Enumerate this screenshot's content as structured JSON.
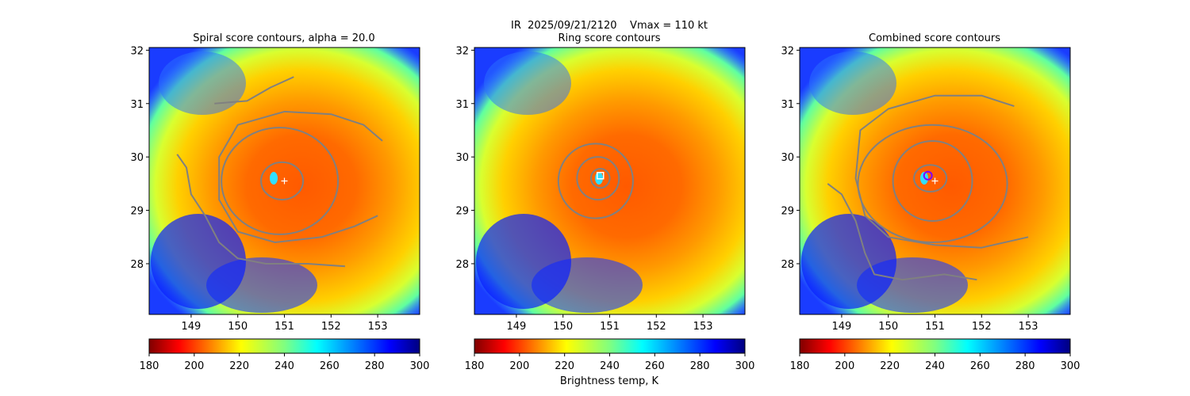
{
  "figure": {
    "suptitle": "IR  2025/09/21/2120    Vmax = 110 kt",
    "colorbar_label": "Brightness temp, K"
  },
  "chart_data": [
    {
      "type": "heatmap",
      "title": "Spiral score contours, alpha = 20.0",
      "xlim": [
        148.1,
        153.9
      ],
      "ylim": [
        27.05,
        32.05
      ],
      "x_ticks": [
        149,
        150,
        151,
        152,
        153
      ],
      "y_ticks": [
        28,
        29,
        30,
        31,
        32
      ],
      "colorbar": {
        "range": [
          180,
          300
        ],
        "ticks": [
          180,
          200,
          220,
          240,
          260,
          280,
          300
        ],
        "cmap": "jet_r"
      },
      "storm_center": {
        "lon": 151.0,
        "lat": 29.55,
        "marker": "+"
      },
      "contours": [
        {
          "kind": "ellipse",
          "lon": 150.95,
          "lat": 29.55,
          "rx": 0.45,
          "ry": 0.35
        },
        {
          "kind": "ellipse",
          "lon": 150.9,
          "lat": 29.55,
          "rx": 1.25,
          "ry": 1.0
        },
        {
          "kind": "path",
          "points": [
            [
              149.5,
              31.0
            ],
            [
              150.2,
              31.05
            ],
            [
              150.7,
              31.3
            ],
            [
              151.2,
              31.5
            ]
          ]
        },
        {
          "kind": "path",
          "points": [
            [
              153.1,
              30.3
            ],
            [
              152.7,
              30.6
            ],
            [
              152.0,
              30.8
            ],
            [
              151.0,
              30.85
            ],
            [
              150.0,
              30.6
            ],
            [
              149.6,
              30.0
            ],
            [
              149.6,
              29.2
            ],
            [
              150.0,
              28.6
            ],
            [
              150.8,
              28.4
            ],
            [
              151.8,
              28.5
            ],
            [
              152.5,
              28.7
            ],
            [
              153.0,
              28.9
            ]
          ]
        },
        {
          "kind": "path",
          "points": [
            [
              148.7,
              30.05
            ],
            [
              148.9,
              29.8
            ],
            [
              149.0,
              29.3
            ],
            [
              149.3,
              28.9
            ],
            [
              149.6,
              28.4
            ],
            [
              150.0,
              28.1
            ],
            [
              150.6,
              28.0
            ],
            [
              151.5,
              28.0
            ],
            [
              152.3,
              27.95
            ]
          ]
        }
      ]
    },
    {
      "type": "heatmap",
      "title": "Ring score contours",
      "xlim": [
        148.1,
        153.9
      ],
      "ylim": [
        27.05,
        32.05
      ],
      "x_ticks": [
        149,
        150,
        151,
        152,
        153
      ],
      "y_ticks": [
        28,
        29,
        30,
        31,
        32
      ],
      "colorbar": {
        "range": [
          180,
          300
        ],
        "ticks": [
          180,
          200,
          220,
          240,
          260,
          280,
          300
        ],
        "cmap": "jet_r"
      },
      "storm_center": {
        "lon": 150.8,
        "lat": 29.65,
        "marker": "square"
      },
      "contours": [
        {
          "kind": "ellipse",
          "lon": 150.7,
          "lat": 29.55,
          "rx": 0.8,
          "ry": 0.7
        },
        {
          "kind": "ellipse",
          "lon": 150.75,
          "lat": 29.6,
          "rx": 0.45,
          "ry": 0.4
        },
        {
          "kind": "ellipse",
          "lon": 150.8,
          "lat": 29.6,
          "rx": 0.2,
          "ry": 0.18
        }
      ]
    },
    {
      "type": "heatmap",
      "title": "Combined score contours",
      "xlim": [
        148.1,
        153.9
      ],
      "ylim": [
        27.05,
        32.05
      ],
      "x_ticks": [
        149,
        150,
        151,
        152,
        153
      ],
      "y_ticks": [
        28,
        29,
        30,
        31,
        32
      ],
      "colorbar": {
        "range": [
          180,
          300
        ],
        "ticks": [
          180,
          200,
          220,
          240,
          260,
          280,
          300
        ],
        "cmap": "jet_r"
      },
      "storm_center": {
        "lon": 151.0,
        "lat": 29.55,
        "marker": "+"
      },
      "eye_marker": {
        "lon": 150.85,
        "lat": 29.65
      },
      "contours": [
        {
          "kind": "ellipse",
          "lon": 150.9,
          "lat": 29.6,
          "rx": 0.35,
          "ry": 0.25
        },
        {
          "kind": "ellipse",
          "lon": 150.95,
          "lat": 29.55,
          "rx": 0.85,
          "ry": 0.75
        },
        {
          "kind": "ellipse",
          "lon": 150.95,
          "lat": 29.5,
          "rx": 1.6,
          "ry": 1.1
        },
        {
          "kind": "path",
          "points": [
            [
              152.7,
              30.95
            ],
            [
              152.0,
              31.15
            ],
            [
              151.0,
              31.15
            ],
            [
              150.0,
              30.9
            ],
            [
              149.4,
              30.5
            ],
            [
              149.3,
              29.6
            ],
            [
              149.5,
              28.9
            ],
            [
              150.0,
              28.5
            ],
            [
              151.0,
              28.35
            ],
            [
              152.0,
              28.3
            ],
            [
              153.0,
              28.5
            ]
          ]
        },
        {
          "kind": "path",
          "points": [
            [
              148.7,
              29.5
            ],
            [
              149.0,
              29.3
            ],
            [
              149.3,
              28.8
            ],
            [
              149.5,
              28.2
            ],
            [
              149.7,
              27.8
            ],
            [
              150.3,
              27.7
            ],
            [
              151.2,
              27.8
            ],
            [
              151.9,
              27.7
            ]
          ]
        }
      ]
    }
  ]
}
